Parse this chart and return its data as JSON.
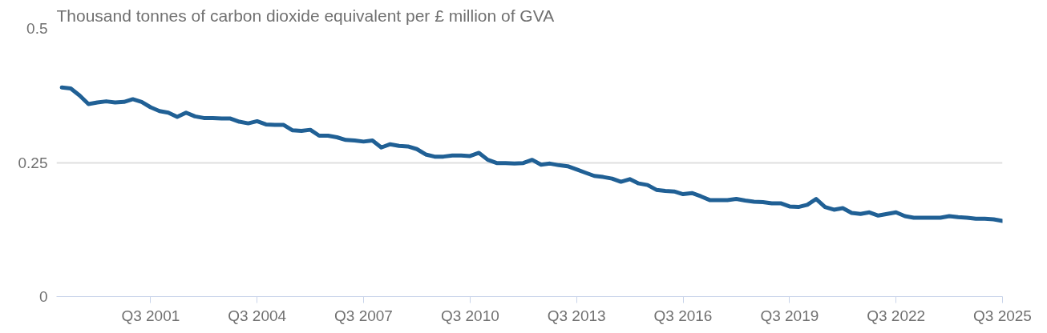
{
  "chart_data": {
    "type": "line",
    "ylabel": "Thousand tonnes of carbon dioxide equivalent per £ million of GVA",
    "categories": [
      null,
      null,
      null,
      null,
      null,
      null,
      null,
      null,
      null,
      null,
      "Q3 2001",
      null,
      null,
      null,
      null,
      null,
      null,
      null,
      null,
      null,
      null,
      null,
      "Q3 2004",
      null,
      null,
      null,
      null,
      null,
      null,
      null,
      null,
      null,
      null,
      null,
      "Q3 2007",
      null,
      null,
      null,
      null,
      null,
      null,
      null,
      null,
      null,
      null,
      null,
      "Q3 2010",
      null,
      null,
      null,
      null,
      null,
      null,
      null,
      null,
      null,
      null,
      null,
      "Q3 2013",
      null,
      null,
      null,
      null,
      null,
      null,
      null,
      null,
      null,
      null,
      null,
      "Q3 2016",
      null,
      null,
      null,
      null,
      null,
      null,
      null,
      null,
      null,
      null,
      null,
      "Q3 2019",
      null,
      null,
      null,
      null,
      null,
      null,
      null,
      null,
      null,
      null,
      null,
      "Q3 2022",
      null,
      null,
      null,
      null,
      null,
      null,
      null,
      null,
      null,
      null,
      null,
      "Q3 2025"
    ],
    "series": [
      {
        "color": "#206095",
        "values": [
          0.39,
          0.388,
          0.375,
          0.359,
          0.362,
          0.364,
          0.362,
          0.363,
          0.368,
          0.363,
          0.353,
          0.346,
          0.343,
          0.335,
          0.343,
          0.336,
          0.333,
          0.333,
          0.332,
          0.332,
          0.326,
          0.323,
          0.327,
          0.321,
          0.32,
          0.32,
          0.31,
          0.309,
          0.311,
          0.3,
          0.3,
          0.297,
          0.292,
          0.291,
          0.289,
          0.291,
          0.278,
          0.284,
          0.281,
          0.28,
          0.275,
          0.265,
          0.261,
          0.261,
          0.263,
          0.263,
          0.262,
          0.268,
          0.255,
          0.249,
          0.249,
          0.248,
          0.249,
          0.255,
          0.246,
          0.248,
          0.245,
          0.243,
          0.237,
          0.231,
          0.225,
          0.223,
          0.22,
          0.214,
          0.219,
          0.211,
          0.208,
          0.199,
          0.197,
          0.196,
          0.191,
          0.193,
          0.187,
          0.18,
          0.18,
          0.18,
          0.182,
          0.179,
          0.177,
          0.176,
          0.174,
          0.174,
          0.168,
          0.167,
          0.171,
          0.182,
          0.167,
          0.162,
          0.165,
          0.156,
          0.154,
          0.157,
          0.151,
          0.154,
          0.157,
          0.15,
          0.147,
          0.147,
          0.147,
          0.147,
          0.15,
          0.148,
          0.147,
          0.145,
          0.145,
          0.144,
          0.141
        ]
      }
    ],
    "ylim": [
      0,
      0.5
    ],
    "yticks": [
      0,
      {
        "value": 0.25,
        "label": "0.25"
      },
      0.5
    ],
    "grid": "y",
    "marker": "none",
    "line_style": "solid"
  }
}
